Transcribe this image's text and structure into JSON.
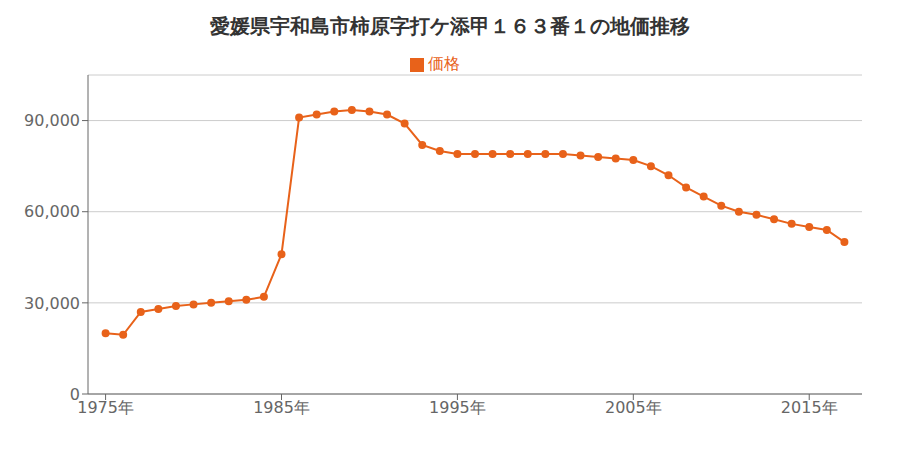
{
  "chart_data": {
    "type": "line",
    "title": "愛媛県宇和島市柿原字打ケ添甲１６３番１の地価推移",
    "x": [
      1975,
      1976,
      1977,
      1978,
      1979,
      1980,
      1981,
      1982,
      1983,
      1984,
      1985,
      1986,
      1987,
      1988,
      1989,
      1990,
      1991,
      1992,
      1993,
      1994,
      1995,
      1996,
      1997,
      1998,
      1999,
      2000,
      2001,
      2002,
      2003,
      2004,
      2005,
      2006,
      2007,
      2008,
      2009,
      2010,
      2011,
      2012,
      2013,
      2014,
      2015,
      2016,
      2017
    ],
    "series": [
      {
        "name": "価格",
        "color": "#e8621a",
        "marker": "circle",
        "values": [
          20000,
          19500,
          27000,
          28000,
          29000,
          29500,
          30000,
          30500,
          31000,
          32000,
          46000,
          91000,
          92000,
          93000,
          93500,
          93000,
          92000,
          89000,
          82000,
          80000,
          79000,
          79000,
          79000,
          79000,
          79000,
          79000,
          79000,
          78500,
          78000,
          77500,
          77000,
          75000,
          72000,
          68000,
          65000,
          62000,
          60000,
          59000,
          57500,
          56000,
          55000,
          54000,
          50000
        ]
      }
    ],
    "xlim": [
      1974,
      2018
    ],
    "xticks": [
      {
        "value": 1975,
        "label": "1975年"
      },
      {
        "value": 1985,
        "label": "1985年"
      },
      {
        "value": 1995,
        "label": "1995年"
      },
      {
        "value": 2005,
        "label": "2005年"
      },
      {
        "value": 2015,
        "label": "2015年"
      }
    ],
    "ylim": [
      0,
      105000
    ],
    "yticks": [
      0,
      {
        "value": 30000,
        "label": "30,000"
      },
      {
        "value": 60000,
        "label": "60,000"
      },
      {
        "value": 90000,
        "label": "90,000"
      }
    ],
    "grid": true,
    "legend": "top"
  }
}
